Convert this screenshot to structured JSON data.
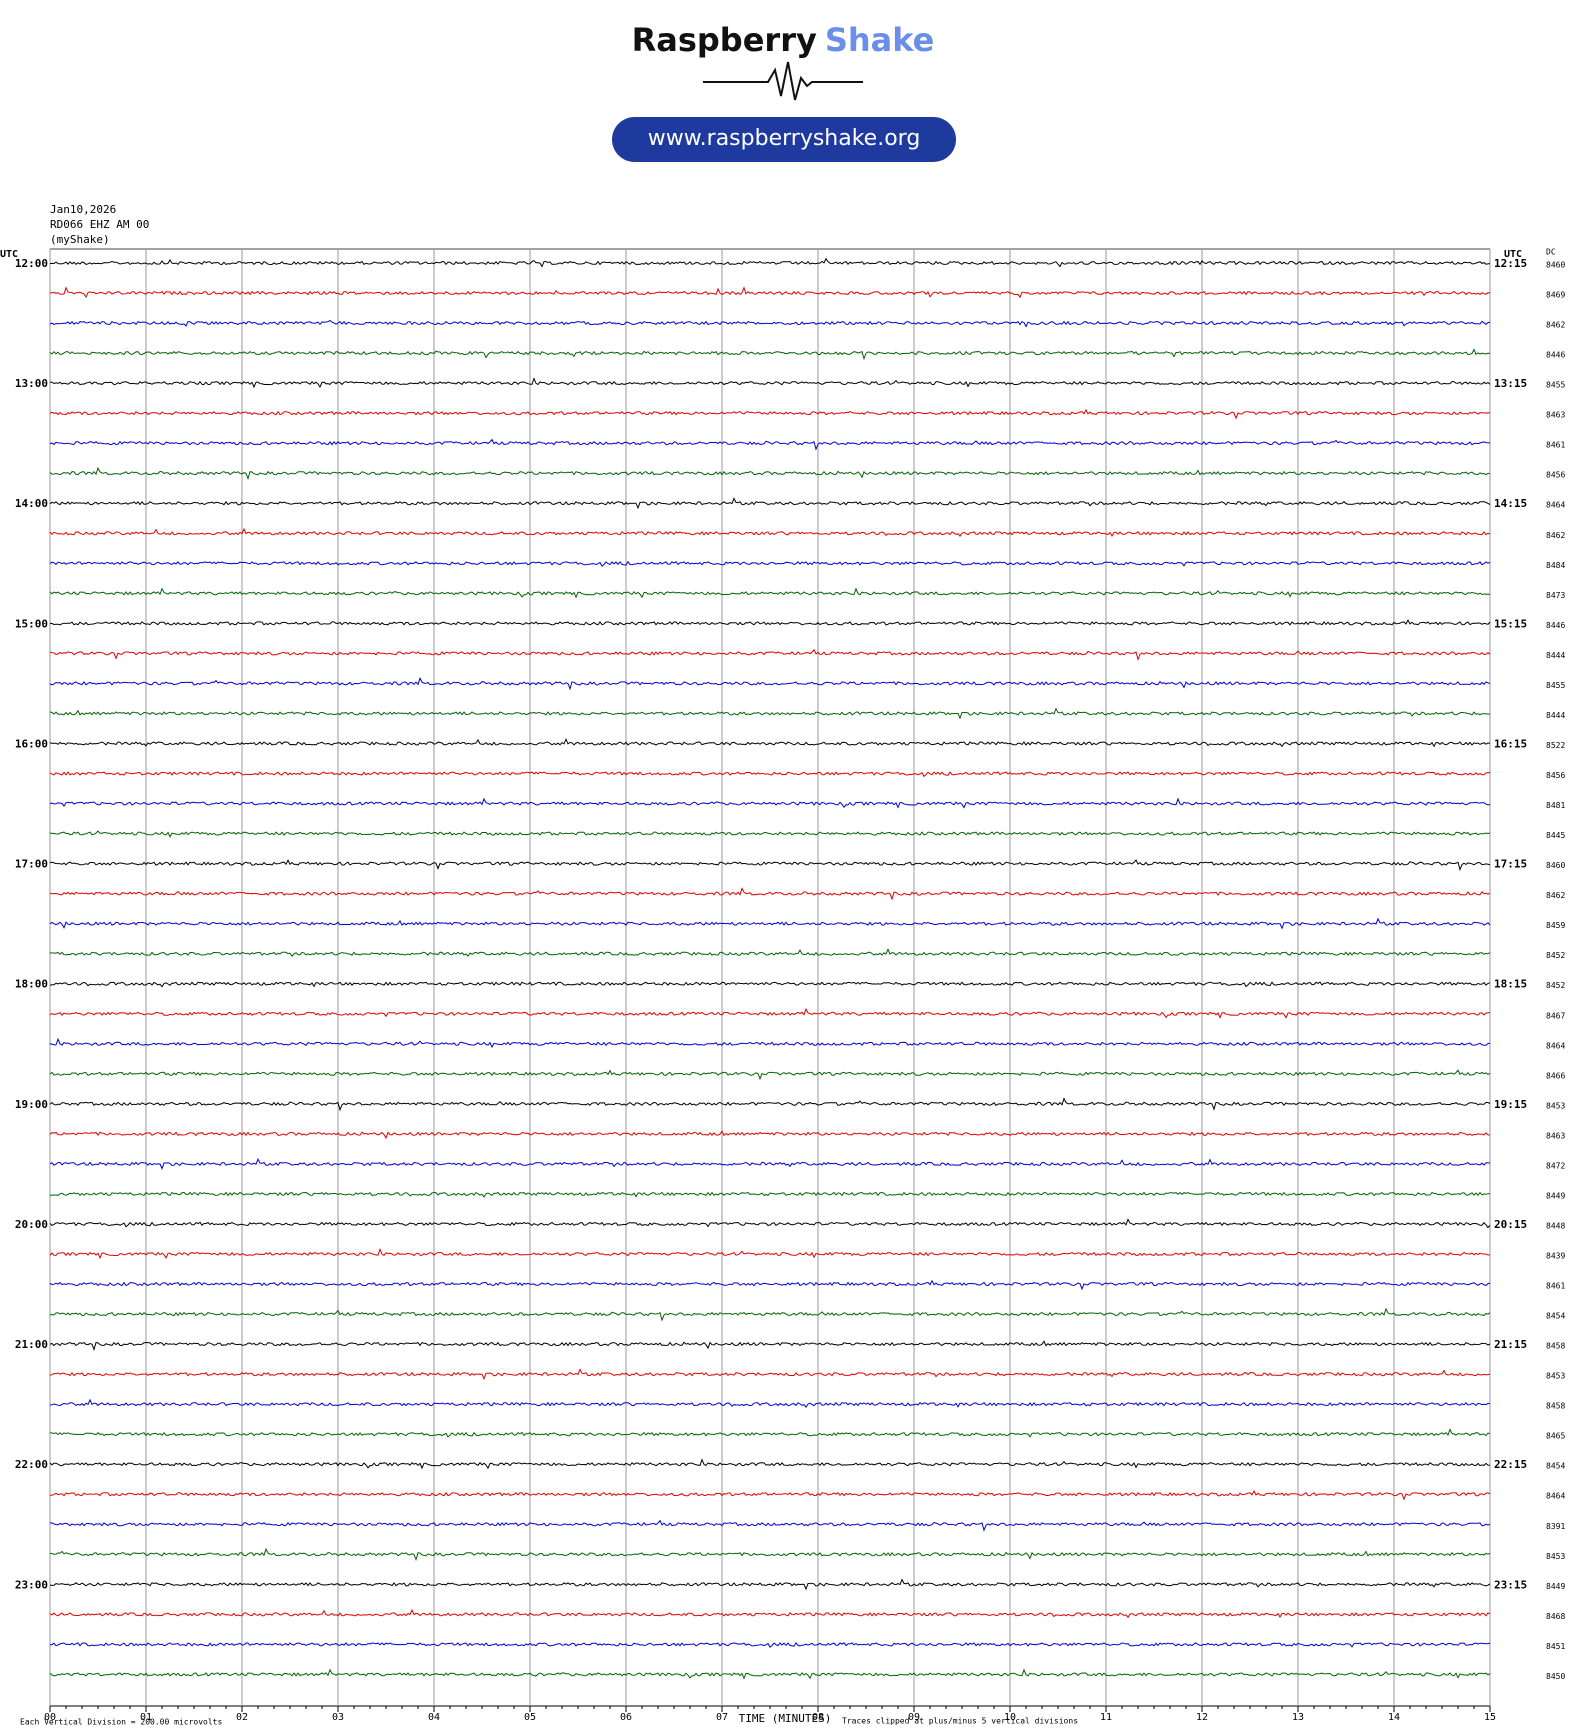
{
  "header": {
    "brand_1": "Raspberry",
    "brand_2": "Shake",
    "url": "www.raspberryshake.org"
  },
  "chart_data": {
    "type": "helicorder",
    "date": "Jan10,2026",
    "station": "RD066 EHZ AM 00",
    "source": "(myShake)",
    "left_axis_label": "UTC",
    "right_axis_label": "UTC",
    "dc_label": "DC",
    "left_times": [
      "12:00",
      "13:00",
      "14:00",
      "15:00",
      "16:00",
      "17:00",
      "18:00",
      "19:00",
      "20:00",
      "21:00",
      "22:00",
      "23:00"
    ],
    "right_times": [
      "12:15",
      "13:15",
      "14:15",
      "15:15",
      "16:15",
      "17:15",
      "18:15",
      "19:15",
      "20:15",
      "21:15",
      "22:15",
      "23:15"
    ],
    "dc_values": [
      8460,
      8469,
      8462,
      8446,
      8455,
      8463,
      8461,
      8456,
      8464,
      8462,
      8484,
      8473,
      8446,
      8444,
      8455,
      8444,
      8522,
      8456,
      8481,
      8445,
      8460,
      8462,
      8459,
      8452,
      8452,
      8467,
      8464,
      8466,
      8453,
      8463,
      8472,
      8449,
      8448,
      8439,
      8461,
      8454,
      8458,
      8453,
      8458,
      8465,
      8454,
      8464,
      8391,
      8453,
      8449,
      8468,
      8451,
      8450
    ],
    "colors": [
      "#000000",
      "#e00000",
      "#0000d0",
      "#006400"
    ],
    "xlim": [
      0,
      15
    ],
    "xticks": [
      {
        "value": 0,
        "label": "00"
      },
      {
        "value": 1,
        "label": "01"
      },
      {
        "value": 2,
        "label": "02"
      },
      {
        "value": 3,
        "label": "03"
      },
      {
        "value": 4,
        "label": "04"
      },
      {
        "value": 5,
        "label": "05"
      },
      {
        "value": 6,
        "label": "06"
      },
      {
        "value": 7,
        "label": "07"
      },
      {
        "value": 8,
        "label": "08"
      },
      {
        "value": 9,
        "label": "09"
      },
      {
        "value": 10,
        "label": "10"
      },
      {
        "value": 11,
        "label": "11"
      },
      {
        "value": 12,
        "label": "12"
      },
      {
        "value": 13,
        "label": "13"
      },
      {
        "value": 14,
        "label": "14"
      },
      {
        "value": 15,
        "label": "15"
      }
    ],
    "xlabel": "TIME (MINUTES)",
    "scale_note": "Each Vertical Division =  200.00 microvolts",
    "clip_note": "Traces clipped at plus/minus 5 vertical divisions",
    "grid": true
  }
}
